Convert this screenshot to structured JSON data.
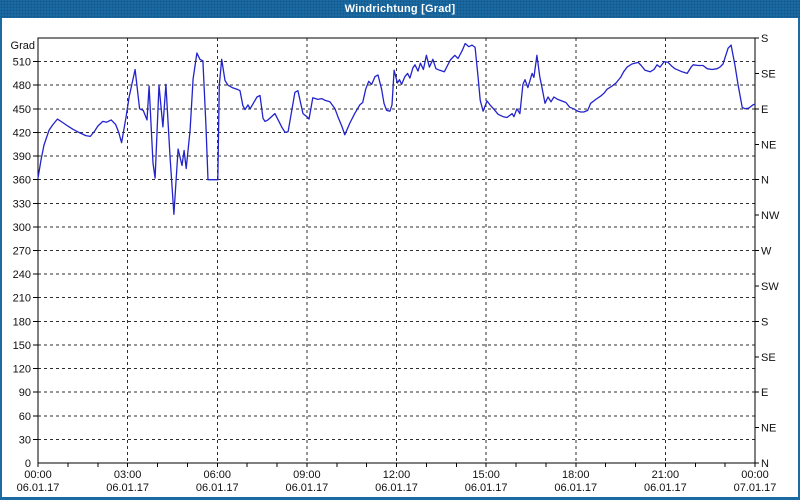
{
  "window": {
    "title": "Windrichtung [Grad]"
  },
  "colors": {
    "frame_blue": "#1A6BA3",
    "line_blue": "#2323CC",
    "grid": "#2e2e2e",
    "plot_border": "#000000",
    "text": "#111111",
    "background": "#FFFFFF"
  },
  "chart_data": {
    "type": "line",
    "title": "Windrichtung [Grad]",
    "ylabel": "Grad",
    "ylim": [
      0,
      540
    ],
    "ytick_step": 30,
    "grid": true,
    "legend": "none",
    "xlim_hours": [
      0,
      24
    ],
    "xtick_step_hours": 3,
    "minor_xtick_step_hours": 1,
    "xtick_labels": [
      {
        "time": "00:00",
        "date": "06.01.17"
      },
      {
        "time": "03:00",
        "date": "06.01.17"
      },
      {
        "time": "06:00",
        "date": "06.01.17"
      },
      {
        "time": "09:00",
        "date": "06.01.17"
      },
      {
        "time": "12:00",
        "date": "06.01.17"
      },
      {
        "time": "15:00",
        "date": "06.01.17"
      },
      {
        "time": "18:00",
        "date": "06.01.17"
      },
      {
        "time": "21:00",
        "date": "06.01.17"
      },
      {
        "time": "00:00",
        "date": "07.01.17"
      }
    ],
    "right_axis_compass": [
      {
        "value": 0,
        "label": "N"
      },
      {
        "value": 45,
        "label": "NE"
      },
      {
        "value": 90,
        "label": "E"
      },
      {
        "value": 135,
        "label": "SE"
      },
      {
        "value": 180,
        "label": "S"
      },
      {
        "value": 225,
        "label": "SW"
      },
      {
        "value": 270,
        "label": "W"
      },
      {
        "value": 315,
        "label": "NW"
      },
      {
        "value": 360,
        "label": "N"
      },
      {
        "value": 405,
        "label": "NE"
      },
      {
        "value": 450,
        "label": "E"
      },
      {
        "value": 495,
        "label": "SE"
      },
      {
        "value": 540,
        "label": "S"
      }
    ],
    "series": [
      {
        "name": "Windrichtung",
        "color": "#2323CC",
        "points": [
          [
            0,
            362
          ],
          [
            0.1,
            385
          ],
          [
            0.2,
            404
          ],
          [
            0.37,
            423
          ],
          [
            0.5,
            430
          ],
          [
            0.65,
            437
          ],
          [
            0.85,
            432
          ],
          [
            1,
            428
          ],
          [
            1.17,
            424
          ],
          [
            1.37,
            420
          ],
          [
            1.6,
            416
          ],
          [
            1.75,
            415
          ],
          [
            1.9,
            422
          ],
          [
            2,
            428
          ],
          [
            2.17,
            434
          ],
          [
            2.3,
            433
          ],
          [
            2.45,
            436
          ],
          [
            2.6,
            430
          ],
          [
            2.7,
            420
          ],
          [
            2.8,
            407
          ],
          [
            2.95,
            440
          ],
          [
            3.05,
            465
          ],
          [
            3.25,
            500
          ],
          [
            3.4,
            450
          ],
          [
            3.52,
            448
          ],
          [
            3.65,
            436
          ],
          [
            3.72,
            479
          ],
          [
            3.85,
            381
          ],
          [
            3.92,
            362
          ],
          [
            4.05,
            480
          ],
          [
            4.18,
            427
          ],
          [
            4.28,
            481
          ],
          [
            4.42,
            390
          ],
          [
            4.55,
            316
          ],
          [
            4.69,
            399
          ],
          [
            4.82,
            378
          ],
          [
            4.89,
            397
          ],
          [
            4.96,
            374
          ],
          [
            5.09,
            423
          ],
          [
            5.19,
            488
          ],
          [
            5.32,
            521
          ],
          [
            5.42,
            513
          ],
          [
            5.52,
            511
          ],
          [
            5.62,
            430
          ],
          [
            5.69,
            360
          ],
          [
            5.85,
            360
          ],
          [
            6.02,
            360
          ],
          [
            6.07,
            480
          ],
          [
            6.15,
            513
          ],
          [
            6.26,
            486
          ],
          [
            6.36,
            480
          ],
          [
            6.5,
            477
          ],
          [
            6.66,
            475
          ],
          [
            6.76,
            473
          ],
          [
            6.86,
            454
          ],
          [
            6.93,
            449
          ],
          [
            7.03,
            455
          ],
          [
            7.1,
            450
          ],
          [
            7.33,
            465
          ],
          [
            7.43,
            467
          ],
          [
            7.53,
            438
          ],
          [
            7.6,
            434
          ],
          [
            7.7,
            436
          ],
          [
            7.93,
            444
          ],
          [
            8.17,
            426
          ],
          [
            8.27,
            420
          ],
          [
            8.37,
            421
          ],
          [
            8.6,
            471
          ],
          [
            8.7,
            473
          ],
          [
            8.87,
            444
          ],
          [
            9,
            440
          ],
          [
            9.07,
            437
          ],
          [
            9.2,
            464
          ],
          [
            9.37,
            462
          ],
          [
            9.5,
            463
          ],
          [
            9.6,
            461
          ],
          [
            9.77,
            459
          ],
          [
            9.94,
            450
          ],
          [
            10.04,
            440
          ],
          [
            10.17,
            428
          ],
          [
            10.27,
            417
          ],
          [
            10.44,
            432
          ],
          [
            10.6,
            444
          ],
          [
            10.77,
            455
          ],
          [
            10.87,
            458
          ],
          [
            10.97,
            475
          ],
          [
            11.07,
            485
          ],
          [
            11.17,
            481
          ],
          [
            11.28,
            491
          ],
          [
            11.38,
            493
          ],
          [
            11.5,
            475
          ],
          [
            11.58,
            457
          ],
          [
            11.67,
            448
          ],
          [
            11.78,
            447
          ],
          [
            11.85,
            455
          ],
          [
            11.92,
            499
          ],
          [
            12.03,
            483
          ],
          [
            12.1,
            487
          ],
          [
            12.17,
            481
          ],
          [
            12.28,
            491
          ],
          [
            12.37,
            495
          ],
          [
            12.45,
            489
          ],
          [
            12.55,
            502
          ],
          [
            12.62,
            506
          ],
          [
            12.72,
            498
          ],
          [
            12.8,
            508
          ],
          [
            12.9,
            500
          ],
          [
            13,
            518
          ],
          [
            13.1,
            503
          ],
          [
            13.22,
            513
          ],
          [
            13.32,
            501
          ],
          [
            13.45,
            499
          ],
          [
            13.6,
            497
          ],
          [
            13.8,
            512
          ],
          [
            13.95,
            518
          ],
          [
            14.06,
            514
          ],
          [
            14.2,
            524
          ],
          [
            14.3,
            533
          ],
          [
            14.42,
            529
          ],
          [
            14.53,
            531
          ],
          [
            14.63,
            528
          ],
          [
            14.73,
            490
          ],
          [
            14.8,
            461
          ],
          [
            14.9,
            447
          ],
          [
            15.03,
            460
          ],
          [
            15.13,
            455
          ],
          [
            15.27,
            449
          ],
          [
            15.4,
            443
          ],
          [
            15.57,
            440
          ],
          [
            15.7,
            439
          ],
          [
            15.87,
            444
          ],
          [
            15.93,
            440
          ],
          [
            16.03,
            450
          ],
          [
            16.13,
            444
          ],
          [
            16.23,
            481
          ],
          [
            16.3,
            487
          ],
          [
            16.4,
            477
          ],
          [
            16.54,
            495
          ],
          [
            16.6,
            490
          ],
          [
            16.7,
            518
          ],
          [
            16.8,
            490
          ],
          [
            16.87,
            477
          ],
          [
            16.97,
            457
          ],
          [
            17.07,
            465
          ],
          [
            17.17,
            459
          ],
          [
            17.27,
            465
          ],
          [
            17.4,
            462
          ],
          [
            17.54,
            460
          ],
          [
            17.67,
            458
          ],
          [
            17.8,
            452
          ],
          [
            17.93,
            450
          ],
          [
            18.07,
            447
          ],
          [
            18.17,
            446
          ],
          [
            18.27,
            446
          ],
          [
            18.4,
            448
          ],
          [
            18.5,
            457
          ],
          [
            18.67,
            462
          ],
          [
            18.83,
            466
          ],
          [
            18.95,
            470
          ],
          [
            19.05,
            475
          ],
          [
            19.22,
            479
          ],
          [
            19.35,
            483
          ],
          [
            19.5,
            490
          ],
          [
            19.6,
            497
          ],
          [
            19.72,
            503
          ],
          [
            19.88,
            507
          ],
          [
            20.09,
            509
          ],
          [
            20.19,
            505
          ],
          [
            20.32,
            499
          ],
          [
            20.49,
            497
          ],
          [
            20.62,
            500
          ],
          [
            20.72,
            506
          ],
          [
            20.82,
            503
          ],
          [
            20.96,
            510
          ],
          [
            21.09,
            509
          ],
          [
            21.22,
            504
          ],
          [
            21.32,
            501
          ],
          [
            21.56,
            497
          ],
          [
            21.73,
            495
          ],
          [
            21.86,
            503
          ],
          [
            21.93,
            506
          ],
          [
            22.1,
            505
          ],
          [
            22.26,
            505
          ],
          [
            22.4,
            501
          ],
          [
            22.56,
            500
          ],
          [
            22.73,
            501
          ],
          [
            22.83,
            503
          ],
          [
            22.93,
            507
          ],
          [
            23.1,
            527
          ],
          [
            23.2,
            531
          ],
          [
            23.33,
            505
          ],
          [
            23.43,
            481
          ],
          [
            23.57,
            452
          ],
          [
            23.67,
            450
          ],
          [
            23.8,
            451
          ],
          [
            23.93,
            455
          ],
          [
            24,
            456
          ]
        ]
      }
    ]
  }
}
